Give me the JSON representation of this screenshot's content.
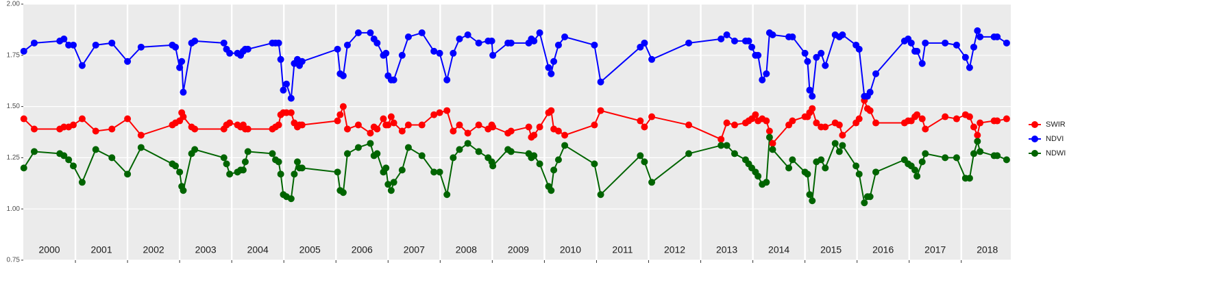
{
  "chart_data": {
    "type": "line",
    "ylim": [
      0.75,
      2.0
    ],
    "yticks": [
      0.75,
      {
        "value": 1.0,
        "label": "1.00"
      },
      1.25,
      {
        "value": 1.5,
        "label": "1.50"
      },
      1.75,
      {
        "value": 2.0,
        "label": "2.00"
      }
    ],
    "xlim": [
      2000,
      2018.95
    ],
    "xticks": [
      {
        "value": 2000.5,
        "label": "2000"
      },
      {
        "value": 2001.5,
        "label": "2001"
      },
      {
        "value": 2002.5,
        "label": "2002"
      },
      {
        "value": 2003.5,
        "label": "2003"
      },
      {
        "value": 2004.5,
        "label": "2004"
      },
      {
        "value": 2005.5,
        "label": "2005"
      },
      {
        "value": 2006.5,
        "label": "2006"
      },
      {
        "value": 2007.5,
        "label": "2007"
      },
      {
        "value": 2008.5,
        "label": "2008"
      },
      {
        "value": 2009.5,
        "label": "2009"
      },
      {
        "value": 2010.5,
        "label": "2010"
      },
      {
        "value": 2011.5,
        "label": "2011"
      },
      {
        "value": 2012.5,
        "label": "2012"
      },
      {
        "value": 2013.5,
        "label": "2013"
      },
      {
        "value": 2014.5,
        "label": "2014"
      },
      {
        "value": 2015.5,
        "label": "2015"
      },
      {
        "value": 2016.5,
        "label": "2016"
      },
      {
        "value": 2017.5,
        "label": "2017"
      },
      {
        "value": 2018.5,
        "label": "2018"
      }
    ],
    "xgrid": [
      2001,
      2002,
      2003,
      2004,
      2005,
      2006,
      2007,
      2008,
      2009,
      2010,
      2011,
      2012,
      2013,
      2014,
      2015,
      2016,
      2017,
      2018
    ],
    "grid": true,
    "legend": "right",
    "x": [
      2000.01,
      2000.21,
      2000.7,
      2000.78,
      2000.87,
      2000.96,
      2001.13,
      2001.39,
      2001.7,
      2002.0,
      2002.26,
      2002.86,
      2002.92,
      2003.0,
      2003.04,
      2003.07,
      2003.23,
      2003.29,
      2003.85,
      2003.9,
      2003.96,
      2004.11,
      2004.17,
      2004.22,
      2004.26,
      2004.31,
      2004.78,
      2004.84,
      2004.9,
      2004.94,
      2004.99,
      2005.05,
      2005.14,
      2005.2,
      2005.26,
      2005.3,
      2005.35,
      2006.03,
      2006.08,
      2006.14,
      2006.22,
      2006.43,
      2006.66,
      2006.73,
      2006.79,
      2006.91,
      2006.96,
      2007.0,
      2007.06,
      2007.11,
      2007.27,
      2007.39,
      2007.65,
      2007.88,
      2007.99,
      2008.13,
      2008.25,
      2008.37,
      2008.53,
      2008.74,
      2008.92,
      2008.99,
      2009.01,
      2009.3,
      2009.36,
      2009.7,
      2009.75,
      2009.8,
      2009.91,
      2010.08,
      2010.13,
      2010.18,
      2010.27,
      2010.39,
      2010.96,
      2011.08,
      2011.84,
      2011.92,
      2012.06,
      2012.77,
      2013.39,
      2013.5,
      2013.65,
      2013.86,
      2013.92,
      2013.98,
      2014.05,
      2014.1,
      2014.18,
      2014.26,
      2014.32,
      2014.38,
      2014.69,
      2014.76,
      2015.0,
      2015.05,
      2015.09,
      2015.14,
      2015.22,
      2015.31,
      2015.39,
      2015.58,
      2015.66,
      2015.72,
      2015.98,
      2016.04,
      2016.14,
      2016.2,
      2016.25,
      2016.36,
      2016.91,
      2016.98,
      2017.04,
      2017.11,
      2017.15,
      2017.25,
      2017.31,
      2017.69,
      2017.91,
      2018.08,
      2018.16,
      2018.24,
      2018.31,
      2018.36,
      2018.63,
      2018.69,
      2018.87
    ],
    "series": [
      {
        "name": "SWIR",
        "color": "#ff0000",
        "values": [
          1.44,
          1.39,
          1.39,
          1.4,
          1.4,
          1.41,
          1.44,
          1.38,
          1.39,
          1.44,
          1.36,
          1.41,
          1.42,
          1.43,
          1.47,
          1.45,
          1.4,
          1.39,
          1.39,
          1.41,
          1.42,
          1.41,
          1.4,
          1.41,
          1.39,
          1.39,
          1.39,
          1.4,
          1.41,
          1.46,
          1.47,
          1.47,
          1.47,
          1.42,
          1.4,
          1.41,
          1.41,
          1.43,
          1.46,
          1.5,
          1.39,
          1.41,
          1.37,
          1.4,
          1.39,
          1.44,
          1.41,
          1.41,
          1.45,
          1.42,
          1.38,
          1.41,
          1.41,
          1.46,
          1.47,
          1.48,
          1.38,
          1.41,
          1.37,
          1.41,
          1.39,
          1.41,
          1.4,
          1.37,
          1.38,
          1.4,
          1.35,
          1.36,
          1.4,
          1.47,
          1.48,
          1.39,
          1.38,
          1.36,
          1.41,
          1.48,
          1.43,
          1.4,
          1.45,
          1.41,
          1.34,
          1.42,
          1.41,
          1.42,
          1.43,
          1.44,
          1.46,
          1.43,
          1.44,
          1.43,
          1.38,
          1.32,
          1.41,
          1.43,
          1.45,
          1.45,
          1.47,
          1.49,
          1.42,
          1.4,
          1.4,
          1.42,
          1.41,
          1.36,
          1.42,
          1.44,
          1.53,
          1.49,
          1.48,
          1.42,
          1.42,
          1.43,
          1.43,
          1.45,
          1.46,
          1.44,
          1.39,
          1.45,
          1.44,
          1.46,
          1.45,
          1.4,
          1.36,
          1.42,
          1.43,
          1.43,
          1.44
        ]
      },
      {
        "name": "NDVI",
        "color": "#0000ff",
        "values": [
          1.77,
          1.81,
          1.82,
          1.83,
          1.8,
          1.8,
          1.7,
          1.8,
          1.81,
          1.72,
          1.79,
          1.8,
          1.79,
          1.69,
          1.72,
          1.57,
          1.81,
          1.82,
          1.81,
          1.78,
          1.76,
          1.76,
          1.75,
          1.77,
          1.78,
          1.78,
          1.81,
          1.81,
          1.81,
          1.73,
          1.58,
          1.61,
          1.54,
          1.71,
          1.73,
          1.7,
          1.72,
          1.78,
          1.66,
          1.65,
          1.8,
          1.86,
          1.86,
          1.83,
          1.81,
          1.75,
          1.76,
          1.65,
          1.63,
          1.63,
          1.75,
          1.84,
          1.86,
          1.77,
          1.76,
          1.63,
          1.76,
          1.83,
          1.85,
          1.81,
          1.82,
          1.82,
          1.75,
          1.81,
          1.81,
          1.81,
          1.83,
          1.82,
          1.86,
          1.69,
          1.66,
          1.72,
          1.8,
          1.84,
          1.8,
          1.62,
          1.79,
          1.81,
          1.73,
          1.81,
          1.83,
          1.85,
          1.82,
          1.82,
          1.82,
          1.79,
          1.75,
          1.75,
          1.63,
          1.66,
          1.86,
          1.85,
          1.84,
          1.84,
          1.76,
          1.72,
          1.58,
          1.55,
          1.74,
          1.76,
          1.7,
          1.85,
          1.84,
          1.85,
          1.8,
          1.78,
          1.55,
          1.55,
          1.57,
          1.66,
          1.82,
          1.83,
          1.81,
          1.77,
          1.77,
          1.71,
          1.81,
          1.81,
          1.8,
          1.74,
          1.69,
          1.79,
          1.87,
          1.84,
          1.84,
          1.84,
          1.81
        ]
      },
      {
        "name": "NDWI",
        "color": "#006400",
        "values": [
          1.2,
          1.28,
          1.27,
          1.26,
          1.24,
          1.21,
          1.13,
          1.29,
          1.25,
          1.17,
          1.3,
          1.22,
          1.21,
          1.18,
          1.11,
          1.09,
          1.27,
          1.29,
          1.25,
          1.22,
          1.17,
          1.18,
          1.19,
          1.19,
          1.23,
          1.28,
          1.27,
          1.24,
          1.23,
          1.17,
          1.07,
          1.06,
          1.05,
          1.17,
          1.23,
          1.2,
          1.2,
          1.18,
          1.09,
          1.08,
          1.27,
          1.3,
          1.32,
          1.26,
          1.27,
          1.18,
          1.2,
          1.12,
          1.09,
          1.13,
          1.19,
          1.3,
          1.26,
          1.18,
          1.18,
          1.07,
          1.25,
          1.29,
          1.32,
          1.28,
          1.25,
          1.23,
          1.21,
          1.29,
          1.28,
          1.27,
          1.25,
          1.26,
          1.22,
          1.11,
          1.09,
          1.19,
          1.24,
          1.31,
          1.22,
          1.07,
          1.26,
          1.23,
          1.13,
          1.27,
          1.31,
          1.31,
          1.27,
          1.24,
          1.22,
          1.2,
          1.18,
          1.16,
          1.12,
          1.13,
          1.35,
          1.29,
          1.2,
          1.24,
          1.18,
          1.17,
          1.07,
          1.04,
          1.23,
          1.24,
          1.2,
          1.32,
          1.28,
          1.31,
          1.21,
          1.17,
          1.03,
          1.06,
          1.06,
          1.18,
          1.24,
          1.22,
          1.21,
          1.19,
          1.16,
          1.23,
          1.27,
          1.25,
          1.25,
          1.15,
          1.15,
          1.27,
          1.33,
          1.28,
          1.26,
          1.26,
          1.24
        ]
      }
    ]
  }
}
